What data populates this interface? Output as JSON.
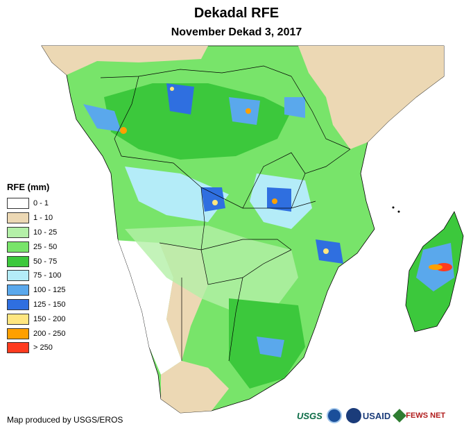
{
  "title": "Dekadal RFE",
  "subtitle": "November Dekad 3, 2017",
  "legend": {
    "title": "RFE (mm)",
    "classes": [
      {
        "label": "0 - 1",
        "color": "#ffffff"
      },
      {
        "label": "1 - 10",
        "color": "#ecd8b4"
      },
      {
        "label": "10 - 25",
        "color": "#b4f0a8"
      },
      {
        "label": "25 - 50",
        "color": "#78e46a"
      },
      {
        "label": "50 - 75",
        "color": "#3cc83c"
      },
      {
        "label": "75 - 100",
        "color": "#b4ecf8"
      },
      {
        "label": "100 - 125",
        "color": "#5aa8ec"
      },
      {
        "label": "125 - 150",
        "color": "#2f6fe0"
      },
      {
        "label": "150 - 200",
        "color": "#ffe680"
      },
      {
        "label": "200 - 250",
        "color": "#ffa000"
      },
      {
        "label": "> 250",
        "color": "#ff3b1e"
      }
    ]
  },
  "credit": "Map produced by USGS/EROS",
  "logos": {
    "usgs": "USGS",
    "usaid": "USAID",
    "fews": "FEWS NET"
  }
}
